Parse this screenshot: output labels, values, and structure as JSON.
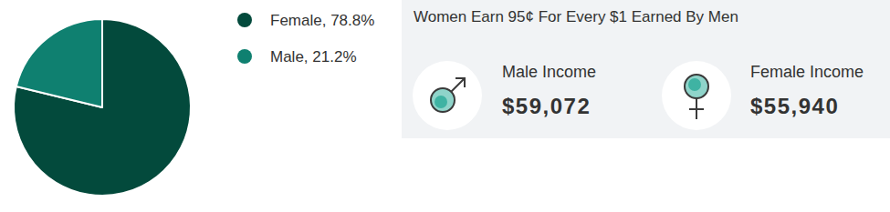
{
  "chart_data": {
    "type": "pie",
    "categories": [
      "Female, 78.8%",
      "Male, 21.2%"
    ],
    "values": [
      78.8,
      21.2
    ],
    "colors": [
      "#034a3c",
      "#0f8070"
    ],
    "legend": "right"
  },
  "panel": {
    "title": "Women Earn 95¢ For Every $1 Earned By Men",
    "items": [
      {
        "label": "Male Income",
        "value": "$59,072"
      },
      {
        "label": "Female Income",
        "value": "$55,940"
      }
    ]
  }
}
